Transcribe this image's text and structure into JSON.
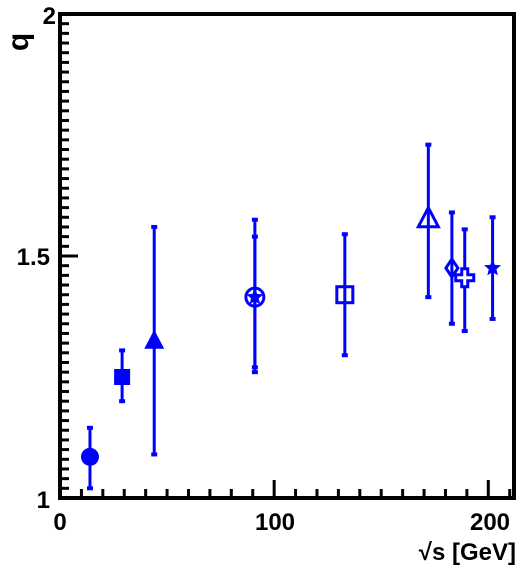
{
  "chart_data": {
    "type": "scatter",
    "xlabel": "√s [GeV]",
    "ylabel": "q",
    "xlim": [
      0,
      212
    ],
    "ylim": [
      1,
      2
    ],
    "x_ticks": [
      0,
      100,
      200
    ],
    "x_tick_labels": [
      "0",
      "100",
      "200"
    ],
    "y_ticks": [
      1,
      1.5,
      2
    ],
    "y_tick_labels": [
      "1",
      "1.5",
      "2"
    ],
    "grid": false,
    "legend": "none",
    "color": "#0000ff",
    "points": [
      {
        "x": 14,
        "y": 1.085,
        "yerr_low": 1.02,
        "yerr_high": 1.145,
        "marker": "circle-filled"
      },
      {
        "x": 29,
        "y": 1.25,
        "yerr_low": 1.2,
        "yerr_high": 1.305,
        "marker": "square-filled"
      },
      {
        "x": 44,
        "y": 1.325,
        "yerr_low": 1.09,
        "yerr_high": 1.56,
        "marker": "triangle-filled"
      },
      {
        "x": 91,
        "y": 1.415,
        "yerr_low": 1.26,
        "yerr_high": 1.575,
        "marker": "circle-open"
      },
      {
        "x": 91,
        "y": 1.415,
        "yerr_low": 1.27,
        "yerr_high": 1.54,
        "marker": "star-filled"
      },
      {
        "x": 133,
        "y": 1.42,
        "yerr_low": 1.295,
        "yerr_high": 1.545,
        "marker": "square-open"
      },
      {
        "x": 172,
        "y": 1.575,
        "yerr_low": 1.415,
        "yerr_high": 1.73,
        "marker": "triangle-open"
      },
      {
        "x": 183,
        "y": 1.475,
        "yerr_low": 1.36,
        "yerr_high": 1.59,
        "marker": "diamond-open"
      },
      {
        "x": 189,
        "y": 1.455,
        "yerr_low": 1.345,
        "yerr_high": 1.555,
        "marker": "cross-open"
      },
      {
        "x": 202,
        "y": 1.475,
        "yerr_low": 1.37,
        "yerr_high": 1.58,
        "marker": "star-filled"
      }
    ]
  }
}
